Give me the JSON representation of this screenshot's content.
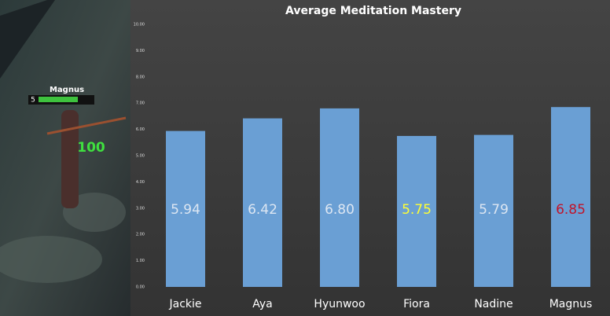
{
  "chart_data": {
    "type": "bar",
    "title": "Average Meditation Mastery",
    "categories": [
      "Jackie",
      "Aya",
      "Hyunwoo",
      "Fiora",
      "Nadine",
      "Magnus"
    ],
    "values": [
      5.94,
      6.42,
      6.8,
      5.75,
      5.79,
      6.85
    ],
    "value_labels": [
      "5.94",
      "6.42",
      "6.80",
      "5.75",
      "5.79",
      "6.85"
    ],
    "label_colors": [
      "#dce6f2",
      "#dce6f2",
      "#dce6f2",
      "#ffff33",
      "#dce6f2",
      "#c0142a"
    ],
    "color": "#6a9fd4",
    "ylim": [
      0,
      10
    ],
    "yticks": [
      {
        "value": 0,
        "label": "0.00"
      },
      {
        "value": 1,
        "label": "1.00"
      },
      {
        "value": 2,
        "label": "2.00"
      },
      {
        "value": 3,
        "label": "3.00"
      },
      {
        "value": 4,
        "label": "4.00"
      },
      {
        "value": 5,
        "label": "5.00"
      },
      {
        "value": 6,
        "label": "6.00"
      },
      {
        "value": 7,
        "label": "7.00"
      },
      {
        "value": 8,
        "label": "8.00"
      },
      {
        "value": 9,
        "label": "9.00"
      },
      {
        "value": 10,
        "label": "10.00"
      }
    ],
    "grid": false
  },
  "scene": {
    "player_name": "Magnus",
    "player_level": 5,
    "damage_number": 100
  }
}
